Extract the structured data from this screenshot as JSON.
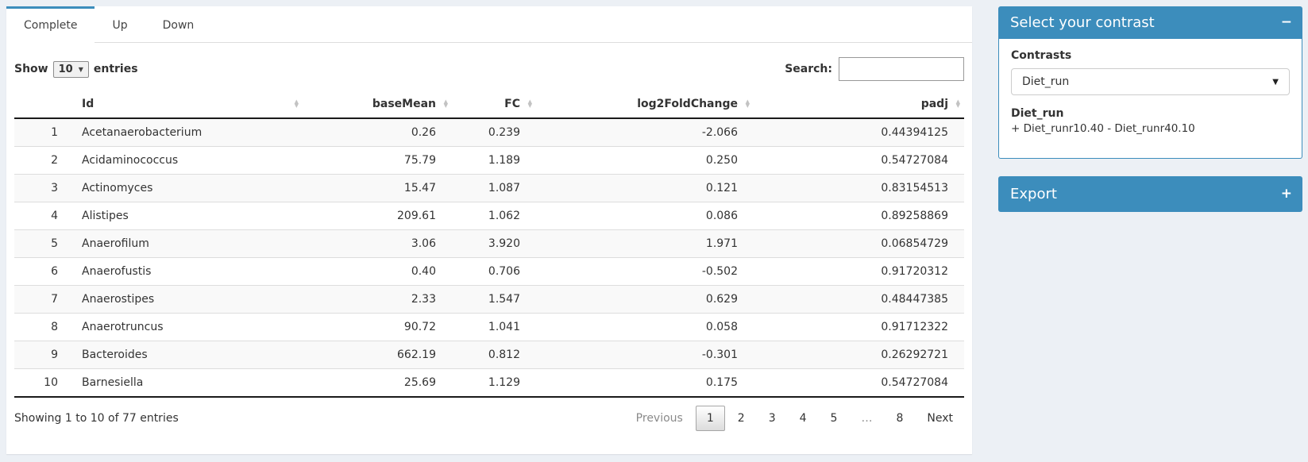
{
  "colors": {
    "accent": "#3c8dbc",
    "page_bg": "#ecf0f5",
    "stripe": "#f9f9f9"
  },
  "tabs": [
    {
      "label": "Complete",
      "active": true
    },
    {
      "label": "Up",
      "active": false
    },
    {
      "label": "Down",
      "active": false
    }
  ],
  "length_control": {
    "prefix": "Show",
    "value": "10",
    "suffix": "entries"
  },
  "search": {
    "label": "Search:",
    "value": "",
    "placeholder": ""
  },
  "table": {
    "columns": [
      {
        "key": "index",
        "label": "",
        "sortable": false
      },
      {
        "key": "id",
        "label": "Id",
        "sortable": true
      },
      {
        "key": "basemean",
        "label": "baseMean",
        "sortable": true
      },
      {
        "key": "fc",
        "label": "FC",
        "sortable": true
      },
      {
        "key": "log2foldchange",
        "label": "log2FoldChange",
        "sortable": true
      },
      {
        "key": "padj",
        "label": "padj",
        "sortable": true
      }
    ],
    "rows": [
      [
        "1",
        "Acetanaerobacterium",
        "0.26",
        "0.239",
        "-2.066",
        "0.44394125"
      ],
      [
        "2",
        "Acidaminococcus",
        "75.79",
        "1.189",
        "0.250",
        "0.54727084"
      ],
      [
        "3",
        "Actinomyces",
        "15.47",
        "1.087",
        "0.121",
        "0.83154513"
      ],
      [
        "4",
        "Alistipes",
        "209.61",
        "1.062",
        "0.086",
        "0.89258869"
      ],
      [
        "5",
        "Anaerofilum",
        "3.06",
        "3.920",
        "1.971",
        "0.06854729"
      ],
      [
        "6",
        "Anaerofustis",
        "0.40",
        "0.706",
        "-0.502",
        "0.91720312"
      ],
      [
        "7",
        "Anaerostipes",
        "2.33",
        "1.547",
        "0.629",
        "0.48447385"
      ],
      [
        "8",
        "Anaerotruncus",
        "90.72",
        "1.041",
        "0.058",
        "0.91712322"
      ],
      [
        "9",
        "Bacteroides",
        "662.19",
        "0.812",
        "-0.301",
        "0.26292721"
      ],
      [
        "10",
        "Barnesiella",
        "25.69",
        "1.129",
        "0.175",
        "0.54727084"
      ]
    ]
  },
  "footer": {
    "info": "Showing 1 to 10 of 77 entries",
    "pagination": [
      {
        "label": "Previous",
        "state": "disabled"
      },
      {
        "label": "1",
        "state": "active"
      },
      {
        "label": "2",
        "state": "normal"
      },
      {
        "label": "3",
        "state": "normal"
      },
      {
        "label": "4",
        "state": "normal"
      },
      {
        "label": "5",
        "state": "normal"
      },
      {
        "label": "…",
        "state": "disabled"
      },
      {
        "label": "8",
        "state": "normal"
      },
      {
        "label": "Next",
        "state": "normal"
      }
    ]
  },
  "contrast_box": {
    "title": "Select your contrast",
    "collapse_icon": "−",
    "contrasts_label": "Contrasts",
    "selected_contrast": "Diet_run",
    "dropdown_caret": "▼",
    "contrast_name": "Diet_run",
    "contrast_formula": "+ Diet_runr10.40 - Diet_runr40.10"
  },
  "export_box": {
    "title": "Export",
    "expand_icon": "+"
  }
}
